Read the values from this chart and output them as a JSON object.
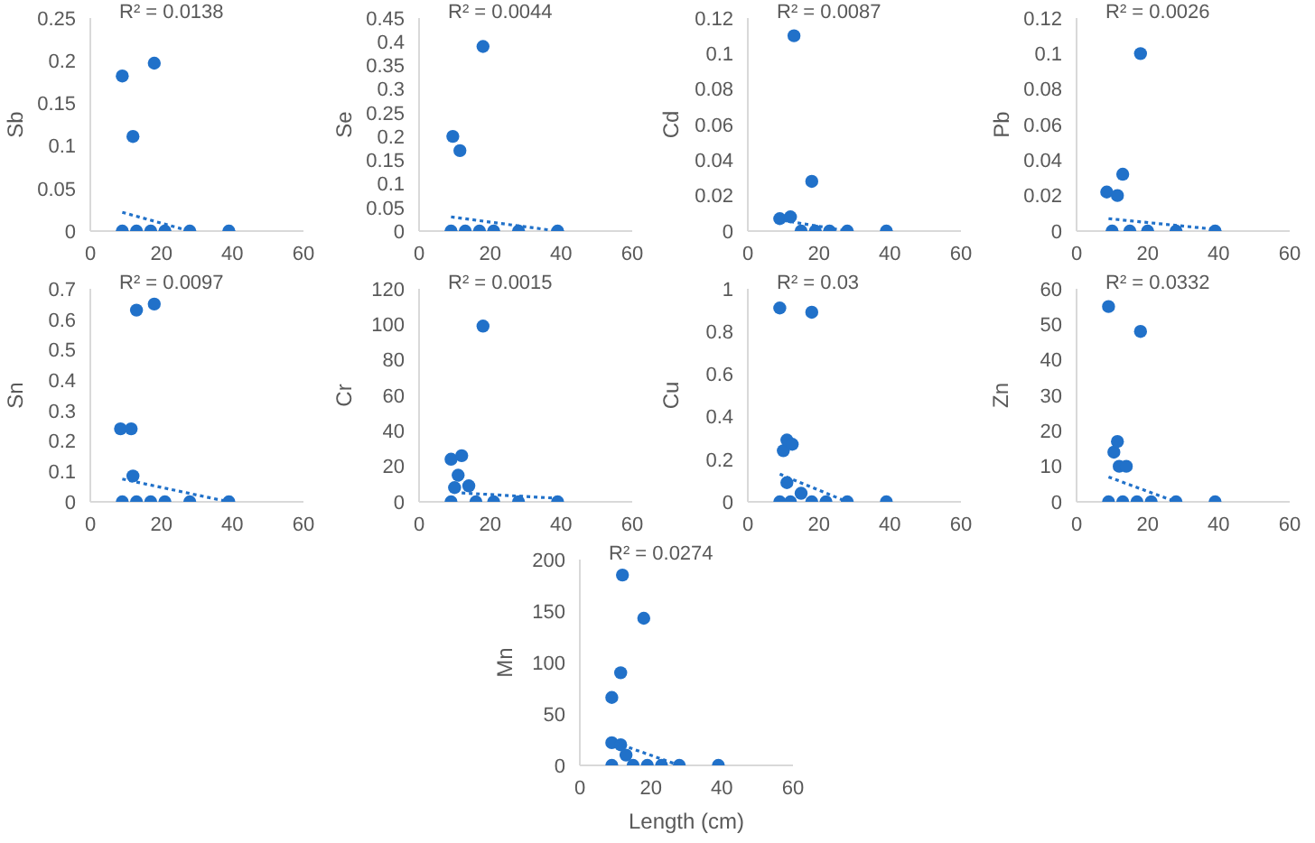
{
  "chart_data": [
    {
      "type": "scatter",
      "ylabel": "Sb",
      "xlim": [
        0,
        60
      ],
      "xticks": [
        0,
        20,
        40,
        60
      ],
      "ylim": [
        0,
        0.25
      ],
      "yticks": [
        0,
        0.05,
        0.1,
        0.15,
        0.2,
        0.25
      ],
      "annotations": [
        "R² = 0.0138"
      ],
      "series": [
        {
          "type": "scatter",
          "color": "#2171c9",
          "marker": "circle",
          "x": [
            9,
            9,
            12,
            13,
            17,
            18,
            21,
            28,
            39
          ],
          "values": [
            0,
            0.182,
            0.111,
            0,
            0,
            0.197,
            0,
            0,
            0
          ]
        },
        {
          "type": "line",
          "color": "#2171c9",
          "line_style": "dotted",
          "marker": "none",
          "x": [
            9,
            28
          ],
          "values": [
            0.022,
            0
          ]
        }
      ]
    },
    {
      "type": "scatter",
      "ylabel": "Se",
      "xlim": [
        0,
        60
      ],
      "xticks": [
        0,
        20,
        40,
        60
      ],
      "ylim": [
        0,
        0.45
      ],
      "yticks": [
        0,
        0.05,
        0.1,
        0.15,
        0.2,
        0.25,
        0.3,
        0.35,
        0.4,
        0.45
      ],
      "annotations": [
        "R² = 0.0044"
      ],
      "series": [
        {
          "type": "scatter",
          "color": "#2171c9",
          "marker": "circle",
          "x": [
            9,
            9.5,
            11.5,
            13,
            17,
            18,
            21,
            28,
            39
          ],
          "values": [
            0,
            0.2,
            0.17,
            0,
            0,
            0.39,
            0,
            0,
            0
          ]
        },
        {
          "type": "line",
          "color": "#2171c9",
          "line_style": "dotted",
          "marker": "none",
          "x": [
            9,
            39
          ],
          "values": [
            0.03,
            0
          ]
        }
      ]
    },
    {
      "type": "scatter",
      "ylabel": "Cd",
      "xlim": [
        0,
        60
      ],
      "xticks": [
        0,
        20,
        40,
        60
      ],
      "ylim": [
        0,
        0.12
      ],
      "yticks": [
        0,
        0.02,
        0.04,
        0.06,
        0.08,
        0.1,
        0.12
      ],
      "annotations": [
        "R² = 0.0087"
      ],
      "series": [
        {
          "type": "scatter",
          "color": "#2171c9",
          "marker": "circle",
          "x": [
            9,
            12,
            13,
            15,
            18,
            19,
            23,
            28,
            39
          ],
          "values": [
            0.007,
            0.008,
            0.11,
            0,
            0.028,
            0,
            0,
            0,
            0
          ]
        },
        {
          "type": "line",
          "color": "#2171c9",
          "line_style": "dotted",
          "marker": "none",
          "x": [
            10,
            28
          ],
          "values": [
            0.006,
            0
          ]
        }
      ]
    },
    {
      "type": "scatter",
      "ylabel": "Pb",
      "xlim": [
        0,
        60
      ],
      "xticks": [
        0,
        20,
        40,
        60
      ],
      "ylim": [
        0,
        0.12
      ],
      "yticks": [
        0,
        0.02,
        0.04,
        0.06,
        0.08,
        0.1,
        0.12
      ],
      "annotations": [
        "R² = 0.0026"
      ],
      "series": [
        {
          "type": "scatter",
          "color": "#2171c9",
          "marker": "circle",
          "x": [
            8.5,
            10,
            11.5,
            13,
            15,
            18,
            20,
            28,
            39
          ],
          "values": [
            0.022,
            0,
            0.02,
            0.032,
            0,
            0.1,
            0,
            0,
            0
          ]
        },
        {
          "type": "line",
          "color": "#2171c9",
          "line_style": "dotted",
          "marker": "none",
          "x": [
            9,
            39
          ],
          "values": [
            0.007,
            0.001
          ]
        }
      ]
    },
    {
      "type": "scatter",
      "ylabel": "Sn",
      "xlim": [
        0,
        60
      ],
      "xticks": [
        0,
        20,
        40,
        60
      ],
      "ylim": [
        0,
        0.7
      ],
      "yticks": [
        0,
        0.1,
        0.2,
        0.3,
        0.4,
        0.5,
        0.6,
        0.7
      ],
      "annotations": [
        "R² = 0.0097"
      ],
      "series": [
        {
          "type": "scatter",
          "color": "#2171c9",
          "marker": "circle",
          "x": [
            8.5,
            9,
            11.5,
            12,
            13,
            13,
            17,
            18,
            21,
            28,
            39
          ],
          "values": [
            0.24,
            0,
            0.24,
            0.085,
            0.63,
            0,
            0,
            0.65,
            0,
            0,
            0
          ]
        },
        {
          "type": "line",
          "color": "#2171c9",
          "line_style": "dotted",
          "marker": "none",
          "x": [
            9,
            39
          ],
          "values": [
            0.075,
            0
          ]
        }
      ]
    },
    {
      "type": "scatter",
      "ylabel": "Cr",
      "xlim": [
        0,
        60
      ],
      "xticks": [
        0,
        20,
        40,
        60
      ],
      "ylim": [
        0,
        120
      ],
      "yticks": [
        0,
        20,
        40,
        60,
        80,
        100,
        120
      ],
      "annotations": [
        "R² = 0.0015"
      ],
      "series": [
        {
          "type": "scatter",
          "color": "#2171c9",
          "marker": "circle",
          "x": [
            9,
            9,
            10,
            11,
            12,
            14,
            16,
            18,
            21,
            28,
            39
          ],
          "values": [
            0,
            24,
            8,
            15,
            26,
            9,
            0,
            99,
            0,
            0,
            0
          ]
        },
        {
          "type": "line",
          "color": "#2171c9",
          "line_style": "dotted",
          "marker": "none",
          "x": [
            12,
            39
          ],
          "values": [
            5,
            2
          ]
        }
      ]
    },
    {
      "type": "scatter",
      "ylabel": "Cu",
      "xlim": [
        0,
        60
      ],
      "xticks": [
        0,
        20,
        40,
        60
      ],
      "ylim": [
        0,
        1
      ],
      "yticks": [
        0,
        0.2,
        0.4,
        0.6,
        0.8,
        1
      ],
      "annotations": [
        "R² = 0.03"
      ],
      "series": [
        {
          "type": "scatter",
          "color": "#2171c9",
          "marker": "circle",
          "x": [
            9,
            9,
            10,
            11,
            11,
            12,
            12.5,
            15,
            18,
            18,
            22,
            28,
            39
          ],
          "values": [
            0,
            0.91,
            0.24,
            0.29,
            0.09,
            0,
            0.27,
            0.04,
            0,
            0.89,
            0,
            0,
            0
          ]
        },
        {
          "type": "line",
          "color": "#2171c9",
          "line_style": "dotted",
          "marker": "none",
          "x": [
            9,
            28
          ],
          "values": [
            0.13,
            0
          ]
        }
      ]
    },
    {
      "type": "scatter",
      "ylabel": "Zn",
      "xlim": [
        0,
        60
      ],
      "xticks": [
        0,
        20,
        40,
        60
      ],
      "ylim": [
        0,
        60
      ],
      "yticks": [
        0,
        10,
        20,
        30,
        40,
        50,
        60
      ],
      "annotations": [
        "R² = 0.0332"
      ],
      "series": [
        {
          "type": "scatter",
          "color": "#2171c9",
          "marker": "circle",
          "x": [
            9,
            9,
            10.5,
            11.5,
            12,
            13,
            14,
            17,
            18,
            21,
            28,
            39
          ],
          "values": [
            0,
            55,
            14,
            17,
            10,
            0,
            10,
            0,
            48,
            0,
            0,
            0
          ]
        },
        {
          "type": "line",
          "color": "#2171c9",
          "line_style": "dotted",
          "marker": "none",
          "x": [
            9,
            28
          ],
          "values": [
            7,
            0
          ]
        }
      ]
    },
    {
      "type": "scatter",
      "ylabel": "Mn",
      "xlabel": "Length (cm)",
      "xlim": [
        0,
        60
      ],
      "xticks": [
        0,
        20,
        40,
        60
      ],
      "ylim": [
        0,
        200
      ],
      "yticks": [
        0,
        50,
        100,
        150,
        200
      ],
      "annotations": [
        "R² = 0.0274"
      ],
      "series": [
        {
          "type": "scatter",
          "color": "#2171c9",
          "marker": "circle",
          "x": [
            9,
            9,
            9,
            11.5,
            11.5,
            12,
            13,
            15,
            18,
            19,
            23,
            28,
            39
          ],
          "values": [
            0,
            22,
            66,
            20,
            90,
            185,
            10,
            0,
            143,
            0,
            0,
            0,
            0
          ]
        },
        {
          "type": "line",
          "color": "#2171c9",
          "line_style": "dotted",
          "marker": "none",
          "x": [
            10,
            28
          ],
          "values": [
            22,
            0
          ]
        }
      ]
    }
  ]
}
